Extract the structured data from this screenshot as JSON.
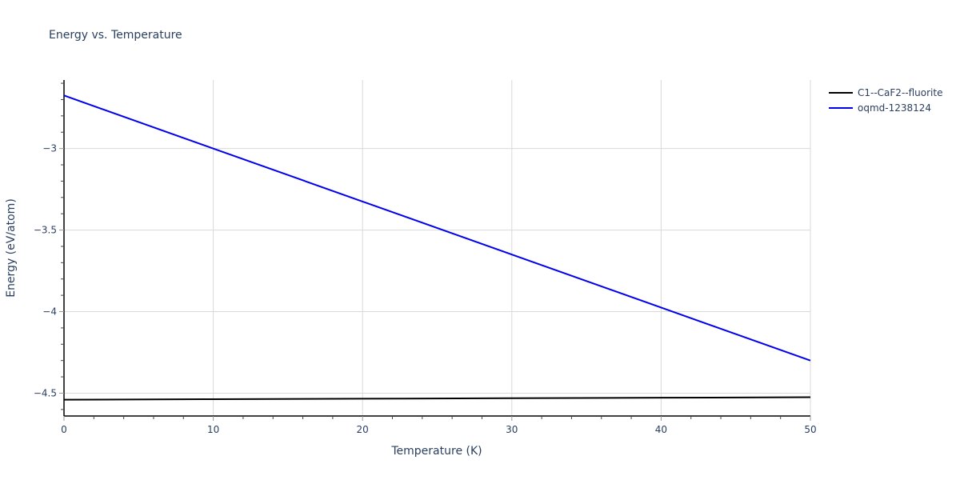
{
  "chart": {
    "title": "Energy vs. Temperature",
    "xlabel": "Temperature (K)",
    "ylabel": "Energy (eV/atom)"
  },
  "legend": {
    "items": [
      {
        "label": "C1--CaF2--fluorite",
        "color": "#000000"
      },
      {
        "label": "oqmd-1238124",
        "color": "#0000ee"
      }
    ]
  },
  "axes": {
    "x_ticks": [
      "0",
      "10",
      "20",
      "30",
      "40",
      "50"
    ],
    "y_ticks": [
      "−3",
      "−3.5",
      "−4",
      "−4.5"
    ]
  },
  "chart_data": {
    "type": "line",
    "title": "Energy vs. Temperature",
    "xlabel": "Temperature (K)",
    "ylabel": "Energy (eV/atom)",
    "xlim": [
      0,
      50
    ],
    "ylim": [
      -4.64,
      -2.58
    ],
    "x_ticks": [
      0,
      10,
      20,
      30,
      40,
      50
    ],
    "y_ticks": [
      -3,
      -3.5,
      -4,
      -4.5
    ],
    "grid": true,
    "legend_position": "top-right outside",
    "series": [
      {
        "name": "C1--CaF2--fluorite",
        "color": "#000000",
        "x": [
          0,
          10,
          20,
          30,
          40,
          50
        ],
        "y": [
          -4.54,
          -4.537,
          -4.534,
          -4.531,
          -4.528,
          -4.525
        ]
      },
      {
        "name": "oqmd-1238124",
        "color": "#0000ee",
        "x": [
          0,
          10,
          20,
          30,
          40,
          50
        ],
        "y": [
          -2.675,
          -3.0,
          -3.325,
          -3.65,
          -3.975,
          -4.3
        ]
      }
    ]
  }
}
